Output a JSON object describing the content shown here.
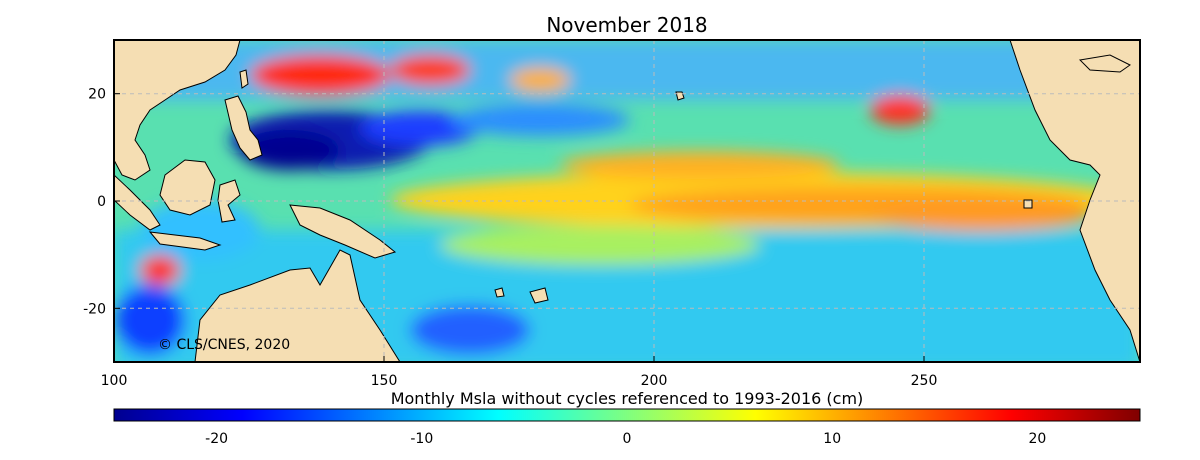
{
  "map": {
    "title": "November 2018",
    "copyright": "© CLS/CNES, 2020",
    "x_ticks": [
      "100",
      "150",
      "200",
      "250"
    ],
    "y_ticks": [
      "20",
      "0",
      "-20"
    ],
    "lon_range": [
      100,
      290
    ],
    "lat_range": [
      -30,
      30
    ],
    "ocean_base_color": "#5fe3a0",
    "land_color": "#f5deb3",
    "grid": true
  },
  "colorbar": {
    "title": "Monthly Msla without cycles  referenced to 1993-2016 (cm)",
    "ticks": [
      "-20",
      "-10",
      "0",
      "10",
      "20"
    ],
    "range": [
      -25,
      25
    ],
    "colormap": "jet"
  }
}
